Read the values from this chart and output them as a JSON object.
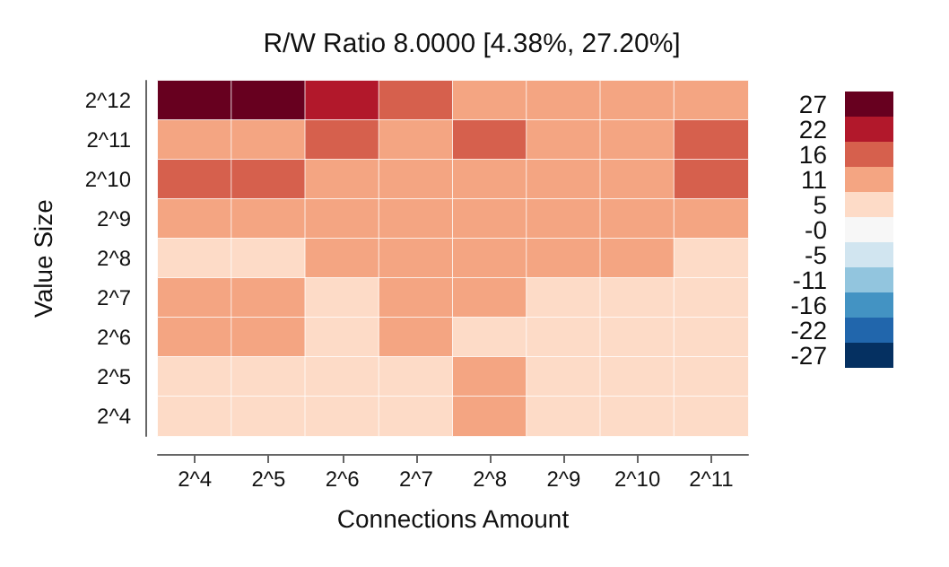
{
  "chart_data": {
    "type": "heatmap",
    "title": "R/W Ratio 8.0000 [4.38%, 27.20%]",
    "xlabel": "Connections Amount",
    "ylabel": "Value Size",
    "categories": [
      "2^4",
      "2^5",
      "2^6",
      "2^7",
      "2^8",
      "2^9",
      "2^10",
      "2^11"
    ],
    "y_categories": [
      "2^12",
      "2^11",
      "2^10",
      "2^9",
      "2^8",
      "2^7",
      "2^6",
      "2^5",
      "2^4"
    ],
    "cells": [
      [
        27.2,
        27.2,
        21.8,
        16.3,
        10.9,
        10.9,
        10.9,
        10.9
      ],
      [
        10.9,
        10.9,
        16.3,
        10.9,
        16.3,
        10.9,
        10.9,
        16.3
      ],
      [
        16.3,
        16.3,
        10.9,
        10.9,
        10.9,
        10.9,
        10.9,
        16.3
      ],
      [
        10.9,
        10.9,
        10.9,
        10.9,
        10.9,
        10.9,
        10.9,
        10.9
      ],
      [
        5.4,
        5.4,
        10.9,
        10.9,
        10.9,
        10.9,
        10.9,
        5.4
      ],
      [
        10.9,
        10.9,
        5.4,
        10.9,
        10.9,
        5.4,
        5.4,
        5.4
      ],
      [
        10.9,
        10.9,
        5.4,
        10.9,
        5.4,
        5.4,
        5.4,
        5.4
      ],
      [
        5.4,
        5.4,
        5.4,
        5.4,
        10.9,
        5.4,
        5.4,
        5.4
      ],
      [
        5.4,
        5.4,
        5.4,
        5.4,
        10.9,
        5.4,
        5.4,
        5.4
      ]
    ],
    "clim": [
      -29.92,
      29.92
    ],
    "cticks": [
      {
        "value": 27.2,
        "label": "27"
      },
      {
        "value": 21.76,
        "label": "22"
      },
      {
        "value": 16.32,
        "label": "16"
      },
      {
        "value": 10.88,
        "label": "11"
      },
      {
        "value": 5.44,
        "label": "5"
      },
      {
        "value": 0,
        "label": "-0"
      },
      {
        "value": -5.44,
        "label": "-5"
      },
      {
        "value": -10.88,
        "label": "-11"
      },
      {
        "value": -16.32,
        "label": "-16"
      },
      {
        "value": -21.76,
        "label": "-22"
      },
      {
        "value": -27.2,
        "label": "-27"
      }
    ],
    "colors": [
      "#67001f",
      "#b2182b",
      "#d6604d",
      "#f4a582",
      "#fddbc7",
      "#f7f7f7",
      "#d1e5f0",
      "#92c5de",
      "#4393c3",
      "#2166ac",
      "#053061"
    ]
  }
}
